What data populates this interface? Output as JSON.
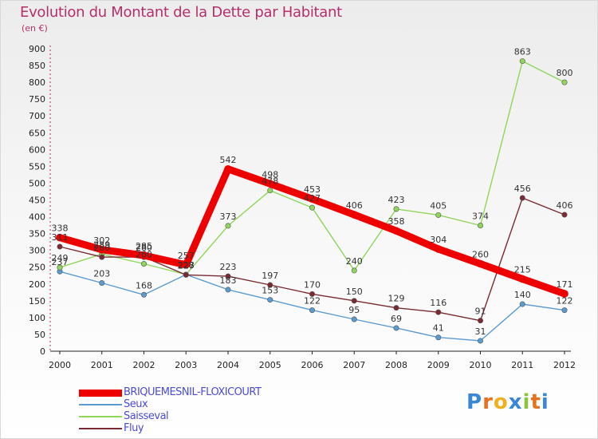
{
  "chart_data": {
    "type": "line",
    "title": "Evolution du Montant de la Dette par Habitant",
    "subtitle": "(en €)",
    "x": [
      2000,
      2001,
      2002,
      2003,
      2004,
      2005,
      2006,
      2007,
      2008,
      2009,
      2010,
      2011,
      2012
    ],
    "ylim": [
      0,
      900
    ],
    "yticks": [
      0,
      50,
      100,
      150,
      200,
      250,
      300,
      350,
      400,
      450,
      500,
      550,
      600,
      650,
      700,
      750,
      800,
      850,
      900
    ],
    "series": [
      {
        "name": "BRIQUEMESNIL-FLOXICOURT",
        "color": "#ee0000",
        "values": [
          338,
          302,
          285,
          257,
          542,
          498,
          453,
          406,
          358,
          304,
          260,
          215,
          171
        ]
      },
      {
        "name": "Seux",
        "color": "#5b9bd0",
        "values": [
          237,
          203,
          168,
          228,
          183,
          153,
          122,
          95,
          69,
          41,
          31,
          140,
          122
        ]
      },
      {
        "name": "Saisseval",
        "color": "#90d65a",
        "values": [
          249,
          289,
          260,
          228,
          373,
          478,
          427,
          240,
          423,
          405,
          374,
          863,
          800
        ]
      },
      {
        "name": "Fluy",
        "color": "#7a2a32",
        "values": [
          311,
          280,
          280,
          227,
          223,
          197,
          170,
          150,
          129,
          116,
          91,
          456,
          406
        ]
      }
    ]
  },
  "logo": {
    "letters": [
      "P",
      "r",
      "o",
      "x",
      "i",
      "t",
      "i"
    ],
    "colors": [
      "#3a86d8",
      "#e8701c",
      "#f0b020",
      "#3a86d8",
      "#8cc43c",
      "#e8701c",
      "#3a86d8"
    ]
  }
}
